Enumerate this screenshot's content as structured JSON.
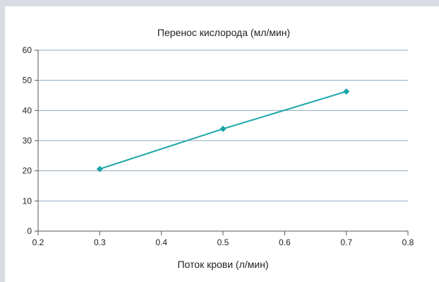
{
  "chart_data": {
    "type": "line",
    "title": "Перенос кислорода (мл/мин)",
    "xlabel": "Поток крови (л/мин)",
    "ylabel": "",
    "xlim": [
      0.2,
      0.8
    ],
    "ylim": [
      0,
      60
    ],
    "x_ticks": [
      "0.2",
      "0.3",
      "0.4",
      "0.5",
      "0.6",
      "0.7",
      "0.8"
    ],
    "y_ticks": [
      "0",
      "10",
      "20",
      "30",
      "40",
      "50",
      "60"
    ],
    "grid": true,
    "legend": "none",
    "series": [
      {
        "color": "#1aa5a8",
        "x": [
          0.3,
          0.5,
          0.7
        ],
        "y": [
          20.6,
          33.9,
          46.3
        ]
      }
    ]
  }
}
